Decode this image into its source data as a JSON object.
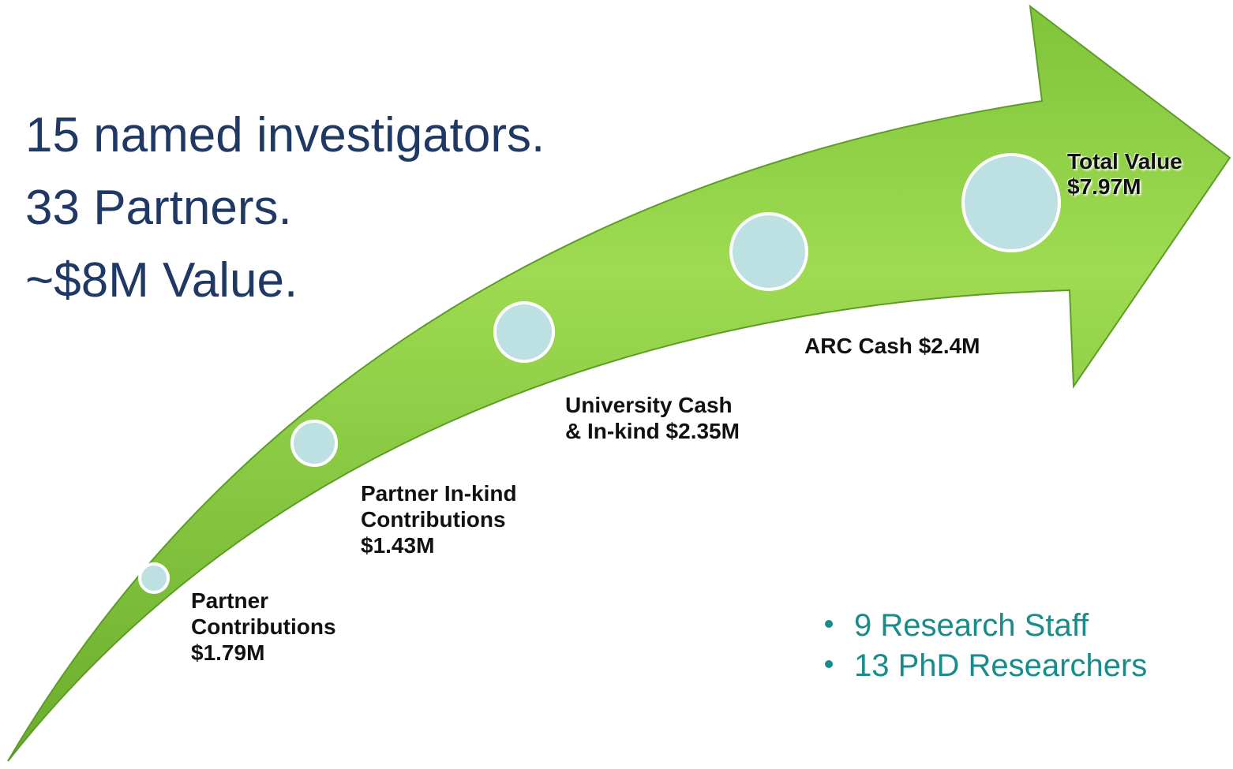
{
  "headline": [
    "15 named investigators.",
    "33 Partners.",
    "~$8M Value."
  ],
  "milestones": [
    {
      "lines": [
        "Partner",
        "Contributions",
        "$1.79M"
      ]
    },
    {
      "lines": [
        "Partner In-kind",
        "Contributions",
        "$1.43M"
      ]
    },
    {
      "lines": [
        "University Cash",
        "& In-kind $2.35M"
      ]
    },
    {
      "lines": [
        "ARC Cash $2.4M"
      ]
    },
    {
      "lines": [
        "Total Value",
        "$7.97M"
      ]
    }
  ],
  "bullets": [
    "9 Research Staff",
    "13 PhD Researchers"
  ]
}
